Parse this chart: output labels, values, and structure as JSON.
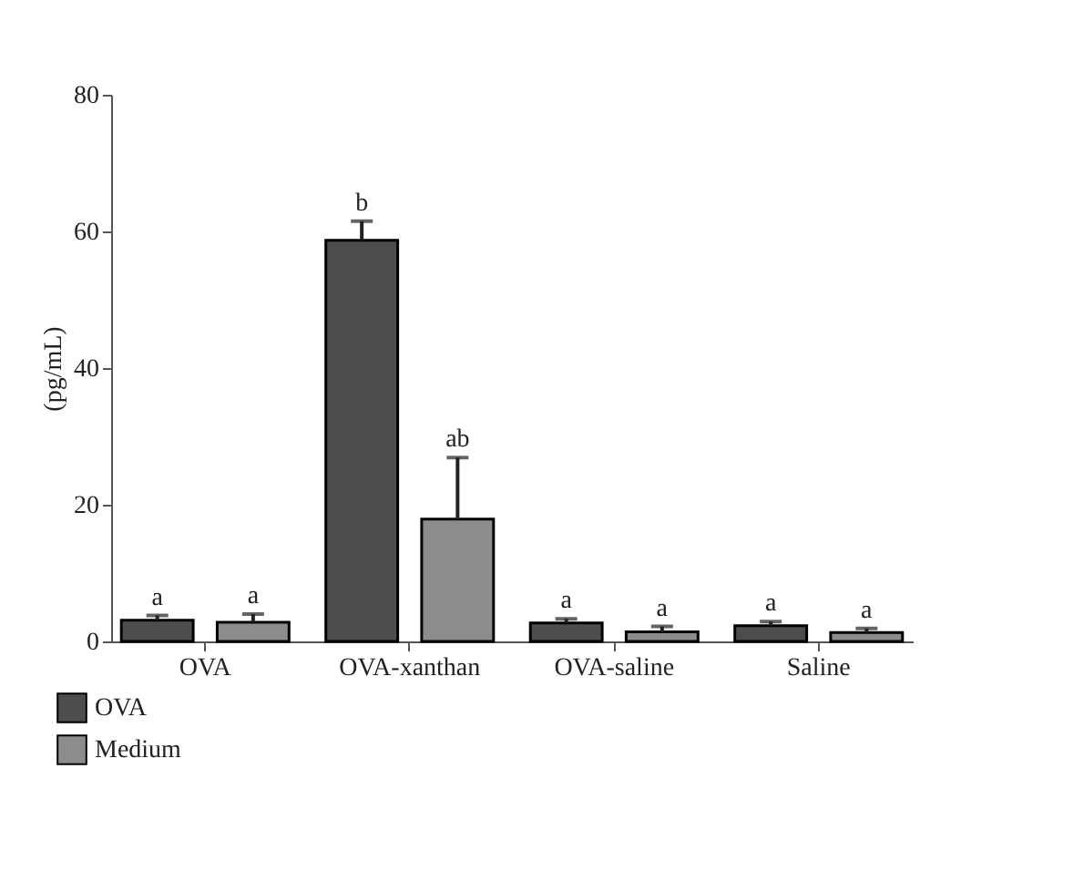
{
  "chart_data": {
    "type": "bar",
    "ylabel": "(pg/mL)",
    "categories": [
      "OVA",
      "OVA-xanthan",
      "OVA-saline",
      "Saline"
    ],
    "series": [
      {
        "name": "OVA",
        "color": "#4d4d4d",
        "values": [
          3.1,
          58.7,
          2.7,
          2.3
        ],
        "errors": [
          0.7,
          2.8,
          0.6,
          0.6
        ]
      },
      {
        "name": "Medium",
        "color": "#8c8c8c",
        "values": [
          2.8,
          17.9,
          1.4,
          1.3
        ],
        "errors": [
          1.2,
          9.0,
          0.8,
          0.6
        ]
      }
    ],
    "ylim": [
      0,
      80
    ],
    "yticks": [
      0,
      20,
      40,
      60,
      80
    ],
    "grid": false,
    "legend": "bottom left",
    "annotations": [
      "a",
      "a",
      "b",
      "ab",
      "a",
      "a",
      "a",
      "a"
    ]
  }
}
